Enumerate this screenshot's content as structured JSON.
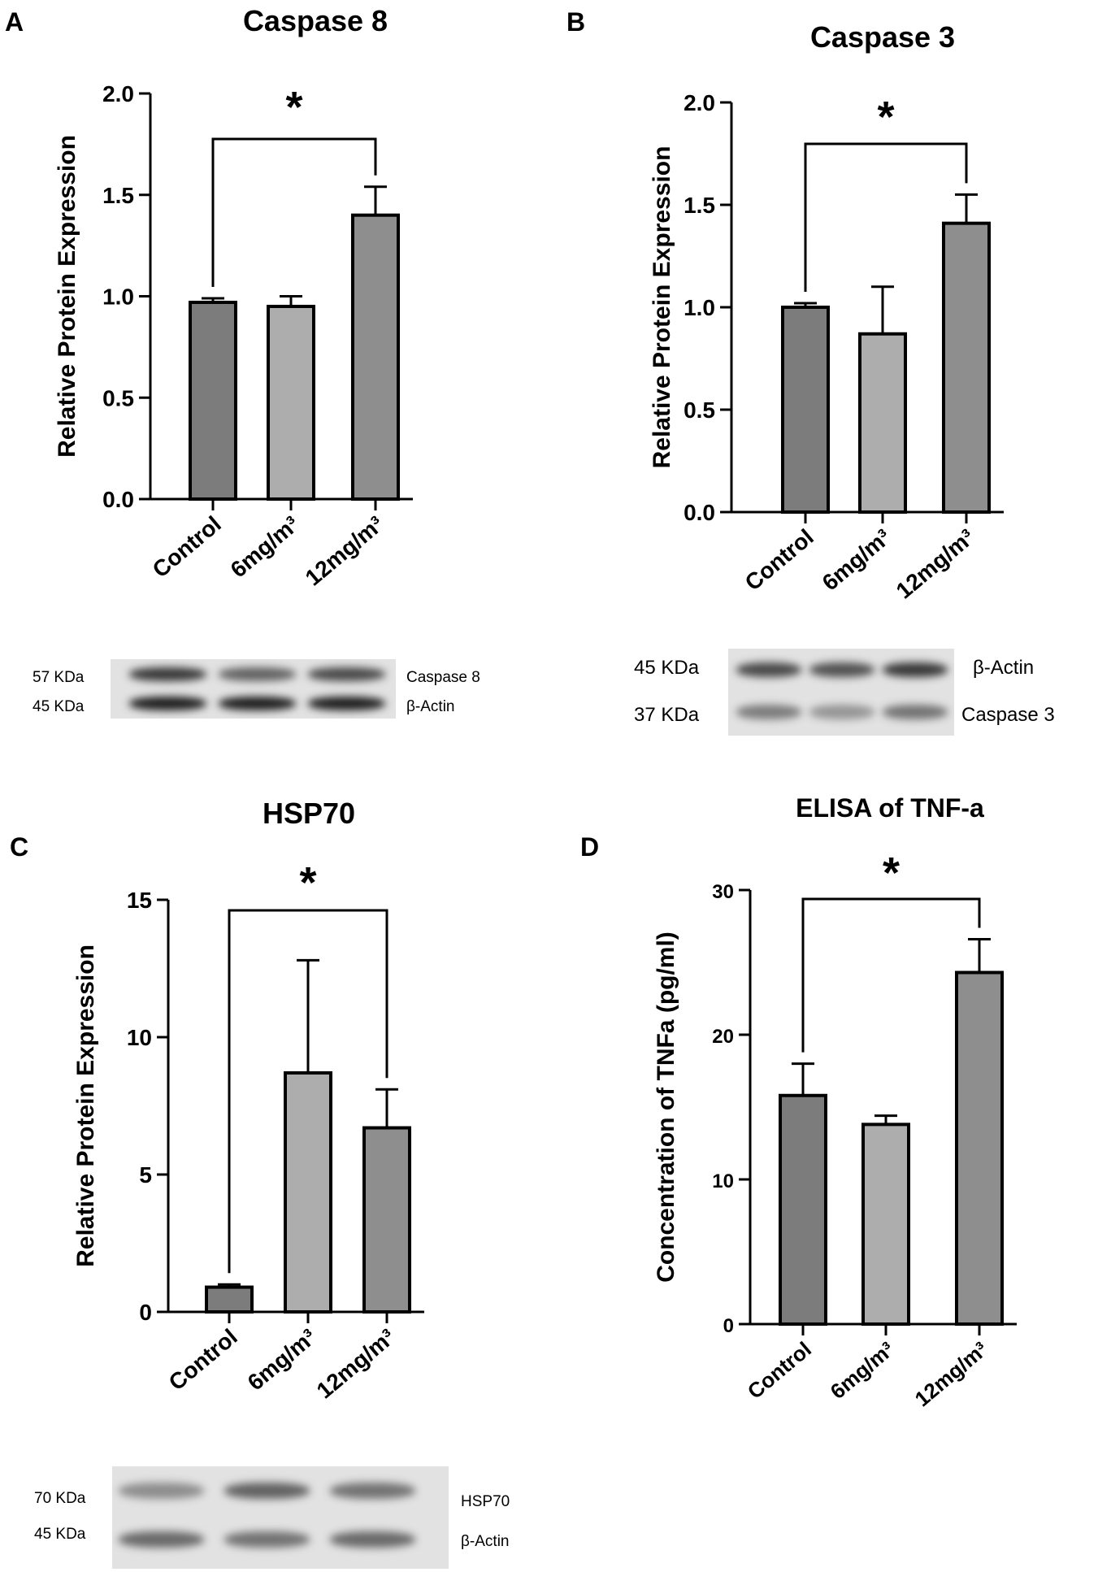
{
  "chart_data": [
    {
      "type": "bar",
      "panel": "A",
      "title": "Caspase 8",
      "ylabel": "Relative Protein Expression",
      "categories": [
        "Control",
        "6mg/m³",
        "12mg/m³"
      ],
      "values": [
        0.97,
        0.95,
        1.4
      ],
      "errors": [
        0.02,
        0.05,
        0.14
      ],
      "ylim": [
        0,
        2.0
      ],
      "yticks": [
        "0.0",
        "0.5",
        "1.0",
        "1.5",
        "2.0"
      ],
      "bar_colors": [
        "#7c7c7c",
        "#adadad",
        "#8e8e8e"
      ],
      "significance": {
        "from": 0,
        "to": 2,
        "label": "*"
      }
    },
    {
      "type": "bar",
      "panel": "B",
      "title": "Caspase 3",
      "ylabel": "Relative Protein Expression",
      "categories": [
        "Control",
        "6mg/m³",
        "12mg/m³"
      ],
      "values": [
        1.0,
        0.87,
        1.41
      ],
      "errors": [
        0.02,
        0.23,
        0.14
      ],
      "ylim": [
        0,
        2.0
      ],
      "yticks": [
        "0.0",
        "0.5",
        "1.0",
        "1.5",
        "2.0"
      ],
      "bar_colors": [
        "#7c7c7c",
        "#adadad",
        "#8e8e8e"
      ],
      "significance": {
        "from": 0,
        "to": 2,
        "label": "*"
      }
    },
    {
      "type": "bar",
      "panel": "C",
      "title": "HSP70",
      "ylabel": "Relative Protein Expression",
      "categories": [
        "Control",
        "6mg/m³",
        "12mg/m³"
      ],
      "values": [
        0.9,
        8.7,
        6.7
      ],
      "errors": [
        0.1,
        4.1,
        1.4
      ],
      "ylim": [
        0,
        15
      ],
      "yticks": [
        "0",
        "5",
        "10",
        "15"
      ],
      "bar_colors": [
        "#7c7c7c",
        "#adadad",
        "#8e8e8e"
      ],
      "significance": {
        "from": 0,
        "to": 2,
        "label": "*"
      }
    },
    {
      "type": "bar",
      "panel": "D",
      "title": "ELISA of TNF-a",
      "ylabel": "Concentration of TNFa (pg/ml)",
      "categories": [
        "Control",
        "6mg/m³",
        "12mg/m³"
      ],
      "values": [
        15.8,
        13.8,
        24.3
      ],
      "errors": [
        2.2,
        0.6,
        2.3
      ],
      "ylim": [
        0,
        30
      ],
      "yticks": [
        "0",
        "10",
        "20",
        "30"
      ],
      "bar_colors": [
        "#7c7c7c",
        "#adadad",
        "#8e8e8e"
      ],
      "significance": {
        "from": 0,
        "to": 2,
        "label": "*"
      }
    }
  ],
  "blots": {
    "A": {
      "rows": [
        {
          "mw": "57 KDa",
          "protein": "Caspase 8",
          "intensity": [
            0.85,
            0.6,
            0.75
          ]
        },
        {
          "mw": "45 KDa",
          "protein": "β-Actin",
          "intensity": [
            1.0,
            1.0,
            1.0
          ]
        }
      ]
    },
    "B": {
      "rows": [
        {
          "mw": "45 KDa",
          "protein": "β-Actin",
          "intensity": [
            0.75,
            0.7,
            0.85
          ]
        },
        {
          "mw": "37 KDa",
          "protein": "Caspase 3",
          "intensity": [
            0.45,
            0.3,
            0.5
          ]
        }
      ]
    },
    "C": {
      "rows": [
        {
          "mw": "70 KDa",
          "protein": "HSP70",
          "intensity": [
            0.35,
            0.6,
            0.5
          ]
        },
        {
          "mw": "45 KDa",
          "protein": "β-Actin",
          "intensity": [
            0.55,
            0.5,
            0.55
          ]
        }
      ]
    }
  }
}
